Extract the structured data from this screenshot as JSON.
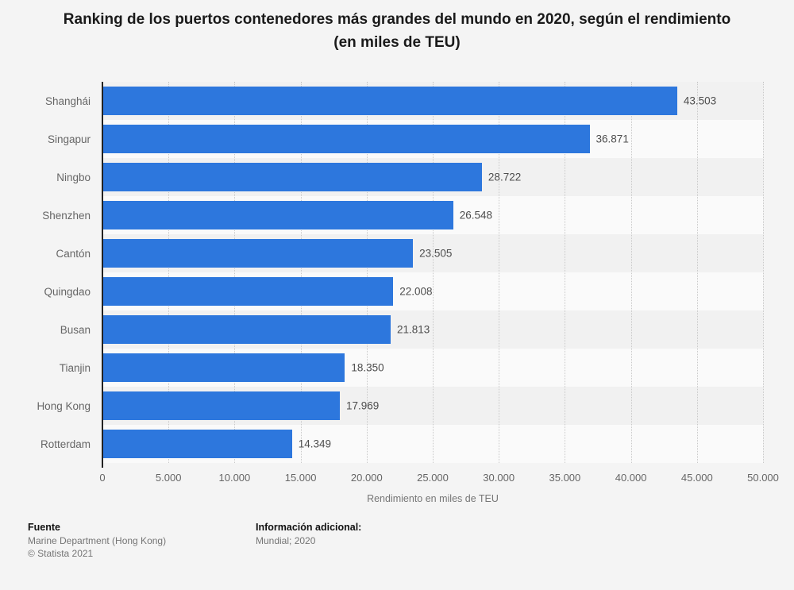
{
  "title": "Ranking de los puertos contenedores más grandes del mundo en 2020, según el rendimiento (en miles de TEU)",
  "chart_data": {
    "type": "bar",
    "orientation": "horizontal",
    "categories": [
      "Shanghái",
      "Singapur",
      "Ningbo",
      "Shenzhen",
      "Cantón",
      "Quingdao",
      "Busan",
      "Tianjin",
      "Hong Kong",
      "Rotterdam"
    ],
    "values": [
      43503,
      36871,
      28722,
      26548,
      23505,
      22008,
      21813,
      18350,
      17969,
      14349
    ],
    "value_labels": [
      "43.503",
      "36.871",
      "28.722",
      "26.548",
      "23.505",
      "22.008",
      "21.813",
      "18.350",
      "17.969",
      "14.349"
    ],
    "xlabel": "Rendimiento en miles de TEU",
    "xlim": [
      0,
      50000
    ],
    "x_ticks": [
      "0",
      "5.000",
      "10.000",
      "15.000",
      "20.000",
      "25.000",
      "30.000",
      "35.000",
      "40.000",
      "45.000",
      "50.000"
    ],
    "x_tick_step": 5000,
    "grid": "vertical-dotted",
    "legend": "none",
    "bar_color": "#2d77dd",
    "stripe_colors": [
      "#f1f1f1",
      "#fafafa"
    ]
  },
  "footer": {
    "source_heading": "Fuente",
    "source_name": "Marine Department (Hong Kong)",
    "copyright": "© Statista 2021",
    "info_heading": "Información adicional:",
    "info_value": "Mundial; 2020"
  },
  "colors": {
    "background": "#f4f4f4",
    "bar": "#2d77dd",
    "axis_line": "#222222",
    "gridline": "#c9c9c9",
    "category_text": "#666666",
    "value_text": "#4d4d4d",
    "title_text": "#1a1a1a"
  }
}
